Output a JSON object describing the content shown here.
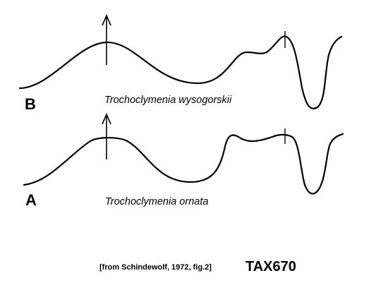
{
  "figure": {
    "panels": [
      {
        "letter": "B",
        "species": "Trochoclymenia wysogorskii"
      },
      {
        "letter": "A",
        "species": "Trochoclymenia ornata"
      }
    ],
    "citation": "[from Schindewolf, 1972, fig.2]",
    "code": "TAX670"
  },
  "colors": {
    "line": "#000000",
    "background": "#ffffff"
  }
}
